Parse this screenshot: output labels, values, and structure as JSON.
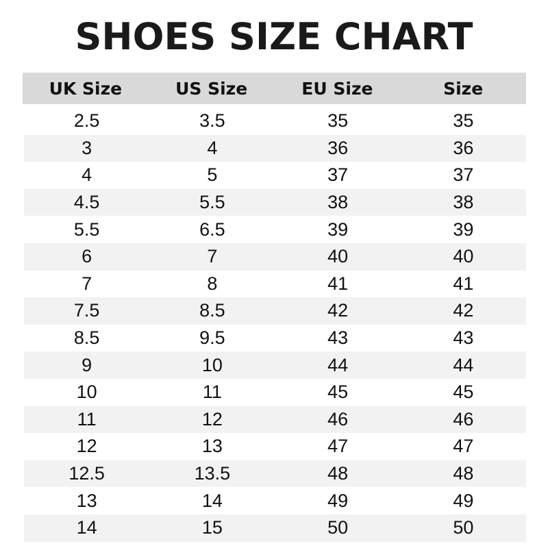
{
  "title": "SHOES SIZE CHART",
  "colors": {
    "header_bg": "#d9d9d9",
    "stripe_bg": "#f2f2f2"
  },
  "columns": [
    "UK Size",
    "US Size",
    "EU Size",
    "Size"
  ],
  "rows": [
    [
      "2.5",
      "3.5",
      "35",
      "35"
    ],
    [
      "3",
      "4",
      "36",
      "36"
    ],
    [
      "4",
      "5",
      "37",
      "37"
    ],
    [
      "4.5",
      "5.5",
      "38",
      "38"
    ],
    [
      "5.5",
      "6.5",
      "39",
      "39"
    ],
    [
      "6",
      "7",
      "40",
      "40"
    ],
    [
      "7",
      "8",
      "41",
      "41"
    ],
    [
      "7.5",
      "8.5",
      "42",
      "42"
    ],
    [
      "8.5",
      "9.5",
      "43",
      "43"
    ],
    [
      "9",
      "10",
      "44",
      "44"
    ],
    [
      "10",
      "11",
      "45",
      "45"
    ],
    [
      "11",
      "12",
      "46",
      "46"
    ],
    [
      "12",
      "13",
      "47",
      "47"
    ],
    [
      "12.5",
      "13.5",
      "48",
      "48"
    ],
    [
      "13",
      "14",
      "49",
      "49"
    ],
    [
      "14",
      "15",
      "50",
      "50"
    ]
  ]
}
